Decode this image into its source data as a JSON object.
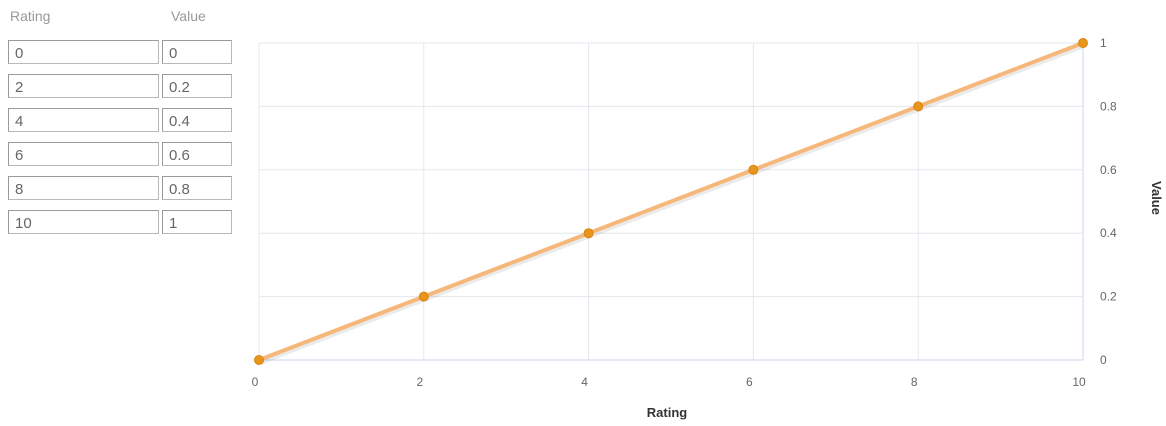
{
  "table": {
    "rating_header": "Rating",
    "value_header": "Value",
    "rows": [
      {
        "rating": "0",
        "value": "0"
      },
      {
        "rating": "2",
        "value": "0.2"
      },
      {
        "rating": "4",
        "value": "0.4"
      },
      {
        "rating": "6",
        "value": "0.6"
      },
      {
        "rating": "8",
        "value": "0.8"
      },
      {
        "rating": "10",
        "value": "1"
      }
    ]
  },
  "chart_data": {
    "type": "line",
    "title": "",
    "xlabel": "Rating",
    "ylabel": "Value",
    "x_ticks": [
      "0",
      "2",
      "4",
      "6",
      "8",
      "10"
    ],
    "y_ticks": [
      "0",
      "0.2",
      "0.4",
      "0.6",
      "0.8",
      "1"
    ],
    "xlim": [
      0,
      10
    ],
    "ylim": [
      0,
      1
    ],
    "grid": true,
    "y_axis_side": "right",
    "series": [
      {
        "x": [
          0,
          2,
          4,
          6,
          8,
          10
        ],
        "y": [
          0,
          0.2,
          0.4,
          0.6,
          0.8,
          1
        ],
        "line_color": "#f5b87a",
        "marker_color": "#e8951e"
      }
    ]
  }
}
